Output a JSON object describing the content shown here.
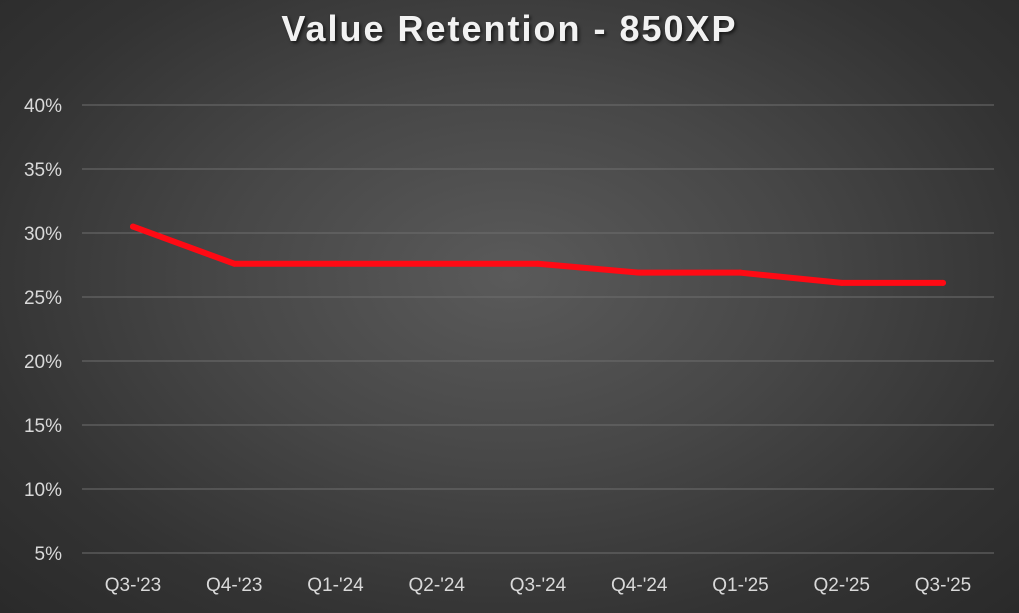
{
  "chart_data": {
    "type": "line",
    "title": "Value Retention - 850XP",
    "xlabel": "",
    "ylabel": "",
    "categories": [
      "Q3-'23",
      "Q4-'23",
      "Q1-'24",
      "Q2-'24",
      "Q3-'24",
      "Q4-'24",
      "Q1-'25",
      "Q2-'25",
      "Q3-'25"
    ],
    "series": [
      {
        "values": [
          0.305,
          0.276,
          0.276,
          0.276,
          0.276,
          0.269,
          0.269,
          0.261,
          0.261
        ],
        "color": "#ff0a14"
      }
    ],
    "ylim": [
      0.05,
      0.4
    ],
    "yticks": [
      0.05,
      0.1,
      0.15,
      0.2,
      0.25,
      0.3,
      0.35,
      0.4
    ],
    "ytick_labels": [
      "5%",
      "10%",
      "15%",
      "20%",
      "25%",
      "30%",
      "35%",
      "40%"
    ],
    "grid": true,
    "legend": "none",
    "colors": {
      "gridline": "#6e6e6e",
      "text": "#d9d9d9",
      "title": "#f2f2f2"
    }
  }
}
